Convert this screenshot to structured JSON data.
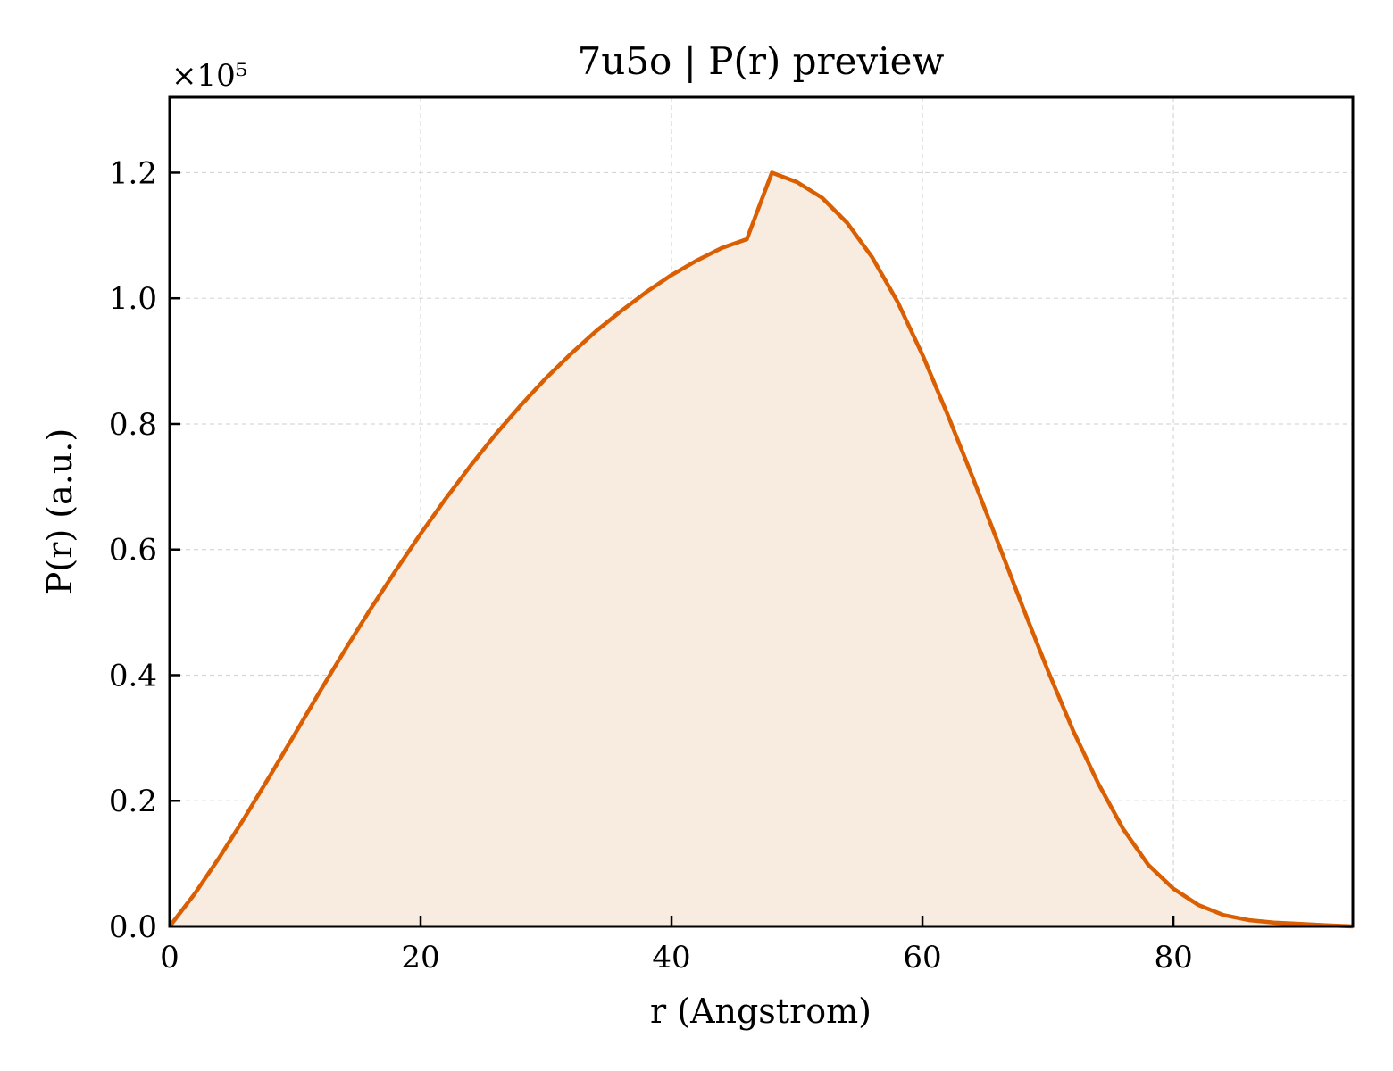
{
  "chart_data": {
    "type": "area",
    "title": "7u5o | P(r) preview",
    "xlabel": "r (Angstrom)",
    "ylabel": "P(r) (a.u.)",
    "y_multiplier": "×10⁵",
    "xlim": [
      0,
      94.3
    ],
    "ylim": [
      0,
      1.32
    ],
    "xticks": [
      0,
      20,
      40,
      60,
      80
    ],
    "yticks": [
      0.0,
      0.2,
      0.4,
      0.6,
      0.8,
      1.0,
      1.2
    ],
    "xtick_labels": [
      "0",
      "20",
      "40",
      "60",
      "80"
    ],
    "ytick_labels": [
      "0.0",
      "0.2",
      "0.4",
      "0.6",
      "0.8",
      "1.0",
      "1.2"
    ],
    "grid": true,
    "colors": {
      "line": "#d95f02",
      "fill": "#f8ebe0"
    },
    "series": [
      {
        "x": [
          0,
          2,
          4,
          6,
          8,
          10,
          12,
          14,
          16,
          18,
          20,
          22,
          24,
          26,
          28,
          30,
          32,
          34,
          36,
          38,
          40,
          42,
          44,
          46,
          48,
          50,
          52,
          54,
          56,
          58,
          60,
          62,
          64,
          66,
          68,
          70,
          72,
          74,
          76,
          78,
          80,
          82,
          84,
          86,
          88,
          90,
          92,
          94.3
        ],
        "y": [
          0.0,
          0.052,
          0.111,
          0.174,
          0.24,
          0.307,
          0.375,
          0.441,
          0.505,
          0.566,
          0.625,
          0.681,
          0.734,
          0.784,
          0.83,
          0.873,
          0.912,
          0.948,
          0.98,
          1.01,
          1.037,
          1.06,
          1.08,
          1.094,
          1.2,
          1.185,
          1.16,
          1.12,
          1.065,
          0.995,
          0.91,
          0.815,
          0.715,
          0.612,
          0.508,
          0.407,
          0.312,
          0.228,
          0.155,
          0.098,
          0.06,
          0.034,
          0.018,
          0.01,
          0.006,
          0.004,
          0.002,
          0.0
        ]
      }
    ]
  }
}
